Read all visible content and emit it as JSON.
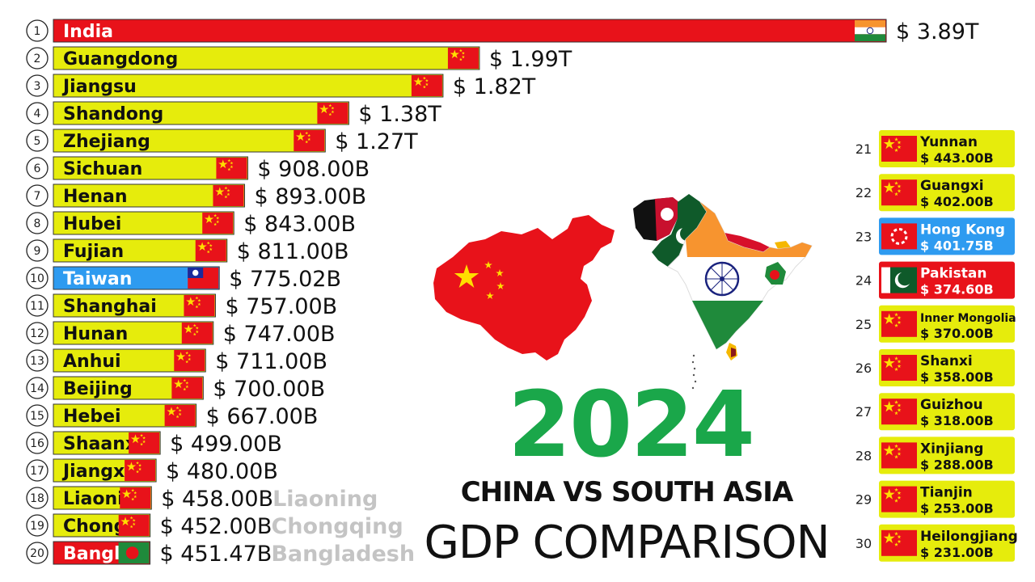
{
  "chart_data": {
    "type": "bar",
    "orientation": "horizontal",
    "unit_prefix": "$",
    "main_list": [
      {
        "rank": "1",
        "label": "India",
        "value_text": "$ 3.89T",
        "value": 3890,
        "color": "#e8121a",
        "flag": "india-flag-icon"
      },
      {
        "rank": "2",
        "label": "Guangdong",
        "value_text": "$ 1.99T",
        "value": 1990,
        "color": "#e6ec0c",
        "flag": "china-flag-icon"
      },
      {
        "rank": "3",
        "label": "Jiangsu",
        "value_text": "$ 1.82T",
        "value": 1820,
        "color": "#e6ec0c",
        "flag": "china-flag-icon"
      },
      {
        "rank": "4",
        "label": "Shandong",
        "value_text": "$ 1.38T",
        "value": 1380,
        "color": "#e6ec0c",
        "flag": "china-flag-icon"
      },
      {
        "rank": "5",
        "label": "Zhejiang",
        "value_text": "$ 1.27T",
        "value": 1270,
        "color": "#e6ec0c",
        "flag": "china-flag-icon"
      },
      {
        "rank": "6",
        "label": "Sichuan",
        "value_text": "$ 908.00B",
        "value": 908,
        "color": "#e6ec0c",
        "flag": "china-flag-icon"
      },
      {
        "rank": "7",
        "label": "Henan",
        "value_text": "$ 893.00B",
        "value": 893,
        "color": "#e6ec0c",
        "flag": "china-flag-icon"
      },
      {
        "rank": "8",
        "label": "Hubei",
        "value_text": "$ 843.00B",
        "value": 843,
        "color": "#e6ec0c",
        "flag": "china-flag-icon"
      },
      {
        "rank": "9",
        "label": "Fujian",
        "value_text": "$ 811.00B",
        "value": 811,
        "color": "#e6ec0c",
        "flag": "china-flag-icon"
      },
      {
        "rank": "10",
        "label": "Taiwan",
        "value_text": "$ 775.02B",
        "value": 775.02,
        "color": "#2e9bf0",
        "flag": "taiwan-flag-icon"
      },
      {
        "rank": "11",
        "label": "Shanghai",
        "value_text": "$ 757.00B",
        "value": 757,
        "color": "#e6ec0c",
        "flag": "china-flag-icon"
      },
      {
        "rank": "12",
        "label": "Hunan",
        "value_text": "$ 747.00B",
        "value": 747,
        "color": "#e6ec0c",
        "flag": "china-flag-icon"
      },
      {
        "rank": "13",
        "label": "Anhui",
        "value_text": "$ 711.00B",
        "value": 711,
        "color": "#e6ec0c",
        "flag": "china-flag-icon"
      },
      {
        "rank": "14",
        "label": "Beijing",
        "value_text": "$ 700.00B",
        "value": 700,
        "color": "#e6ec0c",
        "flag": "china-flag-icon"
      },
      {
        "rank": "15",
        "label": "Hebei",
        "value_text": "$ 667.00B",
        "value": 667,
        "color": "#e6ec0c",
        "flag": "china-flag-icon"
      },
      {
        "rank": "16",
        "label": "Shaanx",
        "value_text": "$ 499.00B",
        "value": 499,
        "color": "#e6ec0c",
        "flag": "china-flag-icon"
      },
      {
        "rank": "17",
        "label": "Jiangx",
        "value_text": "$ 480.00B",
        "value": 480,
        "color": "#e6ec0c",
        "flag": "china-flag-icon"
      },
      {
        "rank": "18",
        "label": "Liaoni",
        "value_text": "$ 458.00B",
        "value": 458,
        "color": "#e6ec0c",
        "flag": "china-flag-icon",
        "ghost": "Liaoning"
      },
      {
        "rank": "19",
        "label": "Chong",
        "value_text": "$ 452.00B",
        "value": 452,
        "color": "#e6ec0c",
        "flag": "china-flag-icon",
        "ghost": "Chongqing"
      },
      {
        "rank": "20",
        "label": "Bangl",
        "value_text": "$ 451.47B",
        "value": 451.47,
        "color": "#e8121a",
        "flag": "bangladesh-flag-icon",
        "ghost": "Bangladesh"
      }
    ],
    "side_list": [
      {
        "rank": "21",
        "label": "Yunnan",
        "value_text": "$ 443.00B",
        "color": "#e6ec0c",
        "flag": "china-flag-icon"
      },
      {
        "rank": "22",
        "label": "Guangxi",
        "value_text": "$ 402.00B",
        "color": "#e6ec0c",
        "flag": "china-flag-icon"
      },
      {
        "rank": "23",
        "label": "Hong Kong",
        "value_text": "$ 401.75B",
        "color": "#2e9bf0",
        "flag": "hong-kong-flag-icon"
      },
      {
        "rank": "24",
        "label": "Pakistan",
        "value_text": "$ 374.60B",
        "color": "#e8121a",
        "flag": "pakistan-flag-icon"
      },
      {
        "rank": "25",
        "label": "Inner Mongolia",
        "value_text": "$ 370.00B",
        "color": "#e6ec0c",
        "flag": "china-flag-icon"
      },
      {
        "rank": "26",
        "label": "Shanxi",
        "value_text": "$ 358.00B",
        "color": "#e6ec0c",
        "flag": "china-flag-icon"
      },
      {
        "rank": "27",
        "label": "Guizhou",
        "value_text": "$ 318.00B",
        "color": "#e6ec0c",
        "flag": "china-flag-icon"
      },
      {
        "rank": "28",
        "label": "Xinjiang",
        "value_text": "$ 288.00B",
        "color": "#e6ec0c",
        "flag": "china-flag-icon"
      },
      {
        "rank": "29",
        "label": "Tianjin",
        "value_text": "$ 253.00B",
        "color": "#e6ec0c",
        "flag": "china-flag-icon"
      },
      {
        "rank": "30",
        "label": "Heilongjiang",
        "value_text": "$ 231.00B",
        "color": "#e6ec0c",
        "flag": "china-flag-icon"
      }
    ]
  },
  "headline": {
    "year": "2024",
    "subtitle": "CHINA VS SOUTH ASIA",
    "subtitle2": "GDP COMPARISON"
  },
  "colors": {
    "china_red": "#e8121a",
    "china_yellow": "#ffde00",
    "year_green": "#1aa74a",
    "ghost_text": "#c4c4c4",
    "india_saffron": "#f7942f",
    "india_green": "#1f8a3b",
    "pakistan_green": "#0f5a2a"
  },
  "illustration": {
    "china_map": "china-map-icon",
    "south_asia_map": "south-asia-map-icon"
  }
}
